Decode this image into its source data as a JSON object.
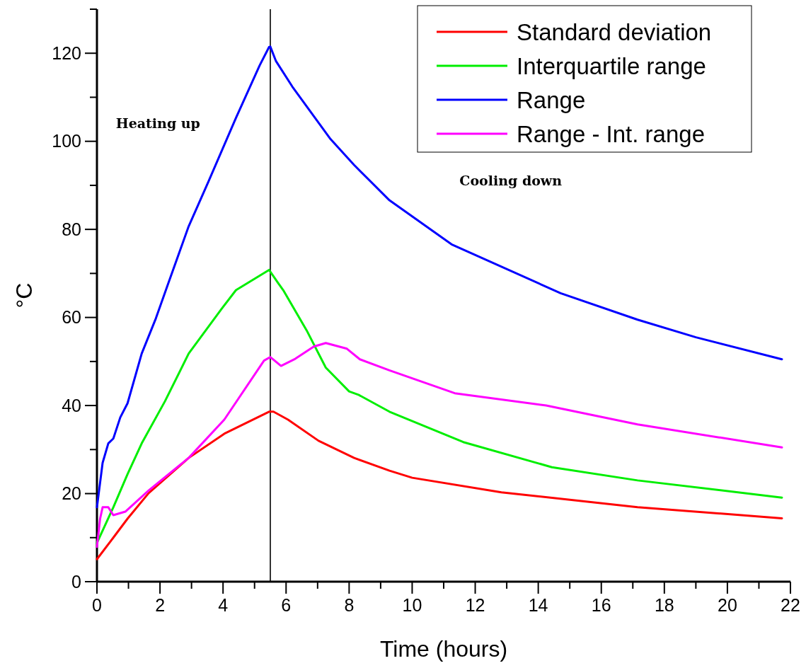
{
  "chart_data": {
    "type": "line",
    "xlabel": "Time (hours)",
    "ylabel": "°C",
    "xlim": [
      0,
      22
    ],
    "ylim": [
      0,
      130
    ],
    "xticks": [
      0,
      {
        "value": 1,
        "label": null
      },
      2,
      {
        "value": 3,
        "label": null
      },
      4,
      {
        "value": 5,
        "label": null
      },
      6,
      {
        "value": 7,
        "label": null
      },
      8,
      {
        "value": 9,
        "label": null
      },
      10,
      {
        "value": 11,
        "label": null
      },
      12,
      {
        "value": 13,
        "label": null
      },
      14,
      {
        "value": 15,
        "label": null
      },
      16,
      {
        "value": 17,
        "label": null
      },
      18,
      {
        "value": 19,
        "label": null
      },
      20,
      {
        "value": 21,
        "label": null
      },
      22
    ],
    "yticks": [
      0,
      {
        "value": 10,
        "label": null
      },
      20,
      {
        "value": 30,
        "label": null
      },
      40,
      {
        "value": 50,
        "label": null
      },
      60,
      {
        "value": 70,
        "label": null
      },
      80,
      {
        "value": 90,
        "label": null
      },
      100,
      {
        "value": 110,
        "label": null
      },
      120,
      {
        "value": 130,
        "label": null
      }
    ],
    "grid": false,
    "legend": "top right",
    "marker": "none",
    "line_style": "solid",
    "ref_lines": [
      {
        "axis": "x",
        "value": 5.5,
        "color": "#333333"
      }
    ],
    "annotations": [
      "Heating up",
      "Cooling down"
    ],
    "series": [
      {
        "name": "Standard deviation",
        "color": "#ff0000",
        "x": [
          0,
          0.52,
          0.97,
          1.64,
          2.91,
          4.04,
          5.46,
          5.6,
          6.06,
          7.03,
          8.16,
          9.28,
          10,
          12.83,
          17.15,
          21.73
        ],
        "values": [
          5.1,
          10,
          14.3,
          20.1,
          28.1,
          33.6,
          38.6,
          38.6,
          36.8,
          32,
          28.1,
          25.2,
          23.6,
          20.3,
          16.9,
          14.4
        ]
      },
      {
        "name": "Interquartile range",
        "color": "#00ee00",
        "x": [
          0,
          0.52,
          0.97,
          1.42,
          2.16,
          2.91,
          3.96,
          4.41,
          5.46,
          5.75,
          5.91,
          6.65,
          7.26,
          8,
          8.31,
          9.28,
          11.62,
          14.43,
          17.15,
          21.73
        ],
        "values": [
          8.8,
          16.9,
          24.4,
          31.4,
          41,
          51.8,
          62,
          66.2,
          70.8,
          67.8,
          66.2,
          57.1,
          48.6,
          43.2,
          42.4,
          38.6,
          31.7,
          26,
          23,
          19.1
        ]
      },
      {
        "name": "Range",
        "color": "#0000ff",
        "x": [
          0,
          0.18,
          0.36,
          0.52,
          0.74,
          0.97,
          1.42,
          1.87,
          2.25,
          2.91,
          3.51,
          4.41,
          5.16,
          5.46,
          5.5,
          5.68,
          6.2,
          7.41,
          8.16,
          9.28,
          11.25,
          14.71,
          17.15,
          19,
          21.73
        ],
        "values": [
          16.9,
          27,
          31.4,
          32.5,
          37.3,
          40.5,
          51.8,
          59.8,
          67.5,
          80.7,
          90.4,
          105.3,
          117.2,
          121.4,
          121.5,
          118.2,
          112.4,
          100.5,
          94.6,
          86.6,
          76.6,
          65.5,
          59.5,
          55.5,
          50.5
        ]
      },
      {
        "name": "Range - Int. range",
        "color": "#ff00ff",
        "x": [
          0,
          0.1,
          0.18,
          0.36,
          0.52,
          0.9,
          1.64,
          2.91,
          4.04,
          5.3,
          5.5,
          5.84,
          6.29,
          6.88,
          7.26,
          7.93,
          8.34,
          9.28,
          11.35,
          14.25,
          17.15,
          21.73
        ],
        "values": [
          7.9,
          14.3,
          16.9,
          16.9,
          15.1,
          15.9,
          20.7,
          28.1,
          36.8,
          50.2,
          51,
          49,
          50.6,
          53.4,
          54.2,
          52.9,
          50.5,
          48,
          42.8,
          40,
          35.7,
          30.5
        ]
      }
    ]
  }
}
